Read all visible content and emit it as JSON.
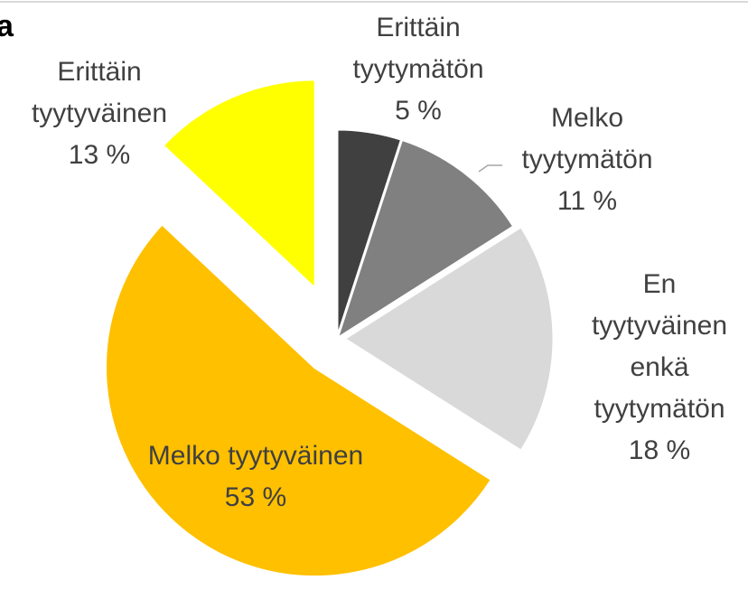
{
  "chart_data": {
    "type": "pie",
    "title": "a",
    "categories": [
      "Erittäin tyytymätön",
      "Melko tyytymätön",
      "En tyytyväinen enkä tyytymätön",
      "Melko tyytyväinen",
      "Erittäin tyytyväinen"
    ],
    "values": [
      5,
      11,
      18,
      53,
      13
    ],
    "value_labels": [
      "5 %",
      "11 %",
      "18 %",
      "53 %",
      "13 %"
    ],
    "colors": [
      "#404040",
      "#808080",
      "#d9d9d9",
      "#ffc000",
      "#ffff00"
    ]
  }
}
